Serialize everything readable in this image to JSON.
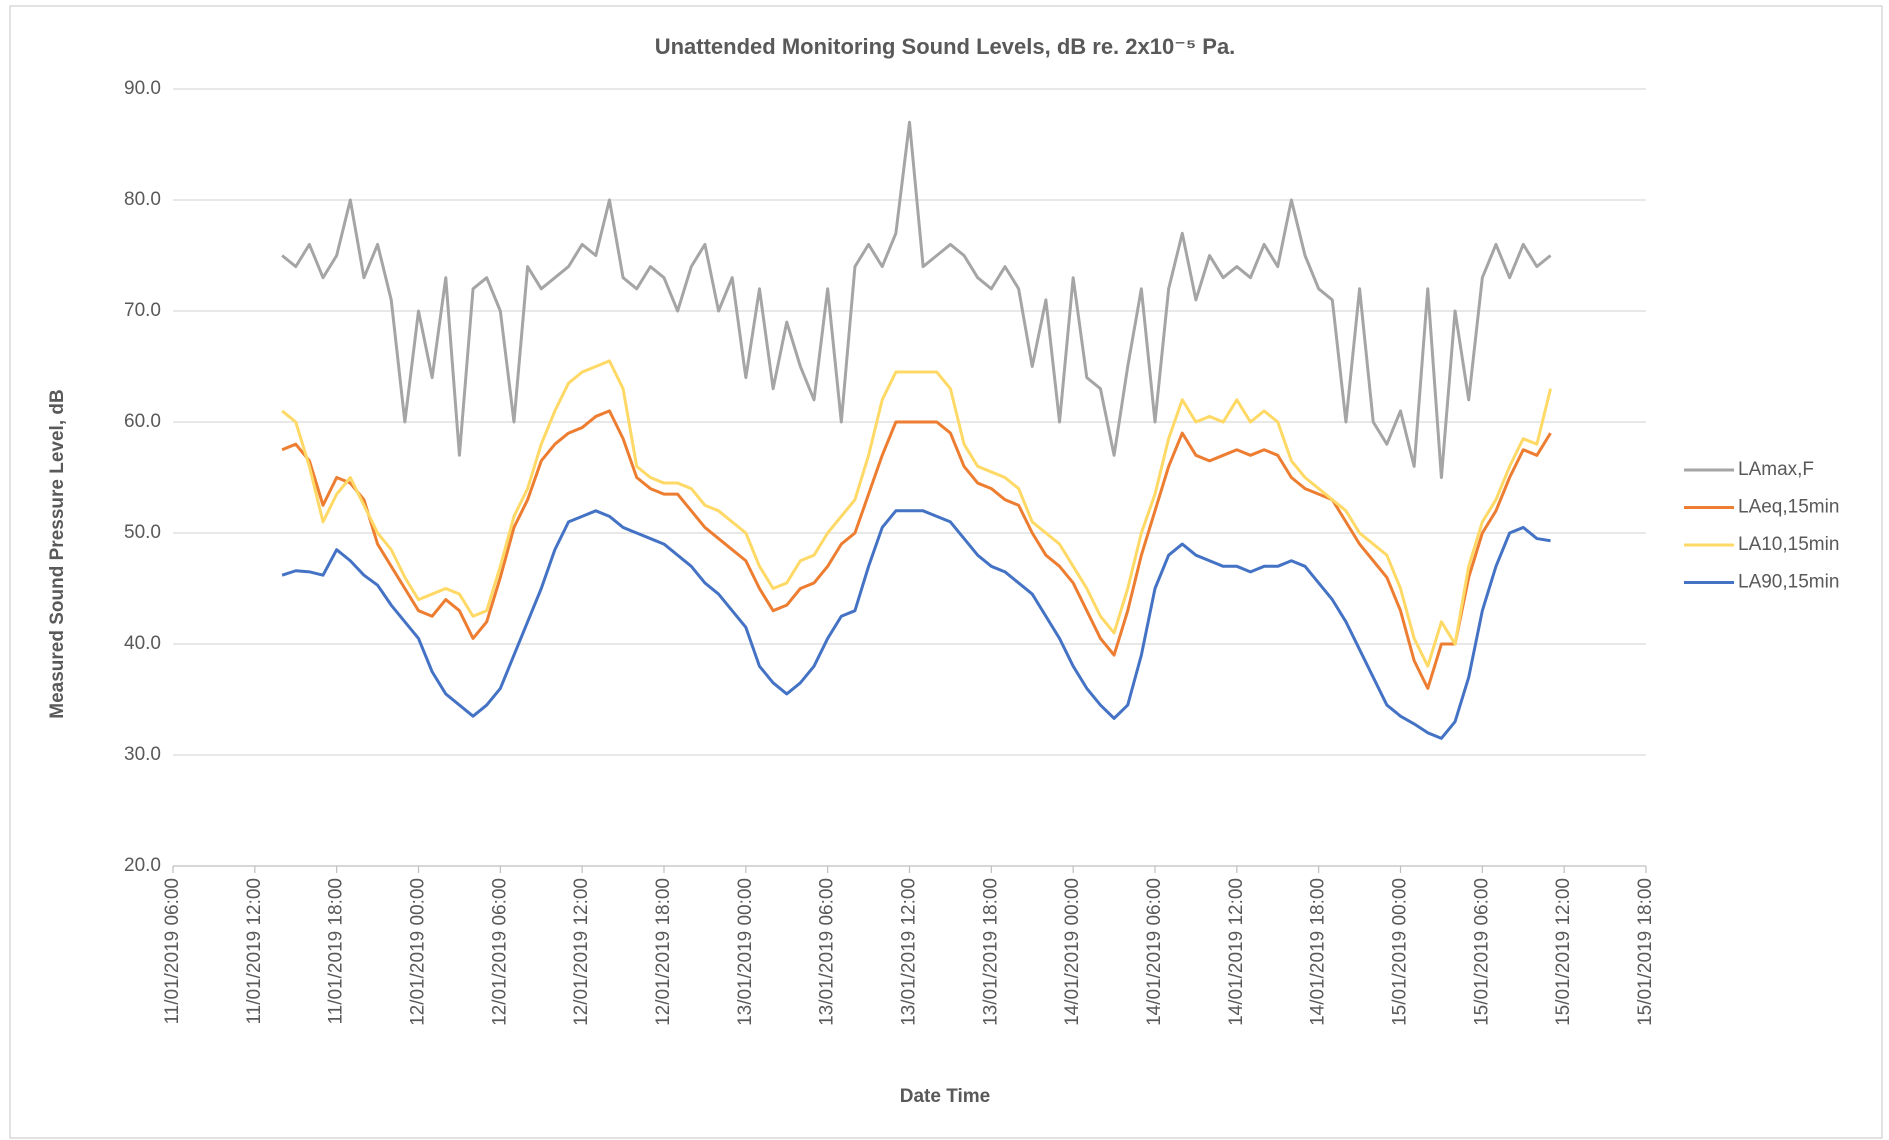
{
  "chart_data": {
    "type": "line",
    "title": "Unattended Monitoring Sound Levels, dB re. 2x10⁻⁵ Pa.",
    "x_label": "Date Time",
    "y_label": "Measured Sound Pressure Level, dB",
    "x": [
      "11/01/2019 14:00",
      "11/01/2019 15:00",
      "11/01/2019 16:00",
      "11/01/2019 17:00",
      "11/01/2019 18:00",
      "11/01/2019 19:00",
      "11/01/2019 20:00",
      "11/01/2019 21:00",
      "11/01/2019 22:00",
      "11/01/2019 23:00",
      "12/01/2019 00:00",
      "12/01/2019 01:00",
      "12/01/2019 02:00",
      "12/01/2019 03:00",
      "12/01/2019 04:00",
      "12/01/2019 05:00",
      "12/01/2019 06:00",
      "12/01/2019 07:00",
      "12/01/2019 08:00",
      "12/01/2019 09:00",
      "12/01/2019 10:00",
      "12/01/2019 11:00",
      "12/01/2019 12:00",
      "12/01/2019 13:00",
      "12/01/2019 14:00",
      "12/01/2019 15:00",
      "12/01/2019 16:00",
      "12/01/2019 17:00",
      "12/01/2019 18:00",
      "12/01/2019 19:00",
      "12/01/2019 20:00",
      "12/01/2019 21:00",
      "12/01/2019 22:00",
      "12/01/2019 23:00",
      "13/01/2019 00:00",
      "13/01/2019 01:00",
      "13/01/2019 02:00",
      "13/01/2019 03:00",
      "13/01/2019 04:00",
      "13/01/2019 05:00",
      "13/01/2019 06:00",
      "13/01/2019 07:00",
      "13/01/2019 08:00",
      "13/01/2019 09:00",
      "13/01/2019 10:00",
      "13/01/2019 11:00",
      "13/01/2019 12:00",
      "13/01/2019 13:00",
      "13/01/2019 14:00",
      "13/01/2019 15:00",
      "13/01/2019 16:00",
      "13/01/2019 17:00",
      "13/01/2019 18:00",
      "13/01/2019 19:00",
      "13/01/2019 20:00",
      "13/01/2019 21:00",
      "13/01/2019 22:00",
      "13/01/2019 23:00",
      "14/01/2019 00:00",
      "14/01/2019 01:00",
      "14/01/2019 02:00",
      "14/01/2019 03:00",
      "14/01/2019 04:00",
      "14/01/2019 05:00",
      "14/01/2019 06:00",
      "14/01/2019 07:00",
      "14/01/2019 08:00",
      "14/01/2019 09:00",
      "14/01/2019 10:00",
      "14/01/2019 11:00",
      "14/01/2019 12:00",
      "14/01/2019 13:00",
      "14/01/2019 14:00",
      "14/01/2019 15:00",
      "14/01/2019 16:00",
      "14/01/2019 17:00",
      "14/01/2019 18:00",
      "14/01/2019 19:00",
      "14/01/2019 20:00",
      "14/01/2019 21:00",
      "14/01/2019 22:00",
      "14/01/2019 23:00",
      "15/01/2019 00:00",
      "15/01/2019 01:00",
      "15/01/2019 02:00",
      "15/01/2019 03:00",
      "15/01/2019 04:00",
      "15/01/2019 05:00",
      "15/01/2019 06:00",
      "15/01/2019 07:00",
      "15/01/2019 08:00",
      "15/01/2019 09:00",
      "15/01/2019 10:00",
      "15/01/2019 11:00"
    ],
    "series": [
      {
        "name": "LAmax,F",
        "color": "#a5a5a5",
        "values": [
          75,
          74,
          76,
          73,
          75,
          80,
          73,
          76,
          71,
          60,
          70,
          64,
          73,
          57,
          72,
          73,
          70,
          60,
          74,
          72,
          73,
          74,
          76,
          75,
          80,
          73,
          72,
          74,
          73,
          70,
          74,
          76,
          70,
          73,
          64,
          72,
          63,
          69,
          65,
          62,
          72,
          60,
          74,
          76,
          74,
          77,
          87,
          74,
          75,
          76,
          75,
          73,
          72,
          74,
          72,
          65,
          71,
          60,
          73,
          64,
          63,
          57,
          65,
          72,
          60,
          72,
          77,
          71,
          75,
          73,
          74,
          73,
          76,
          74,
          80,
          75,
          72,
          71,
          60,
          72,
          60,
          58,
          61,
          56,
          72,
          55,
          70,
          62,
          73,
          76,
          73,
          76,
          74,
          75
        ]
      },
      {
        "name": "LAeq,15min",
        "color": "#ed7d31",
        "values": [
          57.5,
          58,
          56.5,
          52.5,
          55,
          54.5,
          53,
          49,
          47,
          45,
          43,
          42.5,
          44,
          43,
          40.5,
          42,
          46,
          50.5,
          53,
          56.5,
          58,
          59,
          59.5,
          60.5,
          61,
          58.5,
          55,
          54,
          53.5,
          53.5,
          52,
          50.5,
          49.5,
          48.5,
          47.5,
          45,
          43,
          43.5,
          45,
          45.5,
          47,
          49,
          50,
          53.5,
          57,
          60,
          60,
          60,
          60,
          59,
          56,
          54.5,
          54,
          53,
          52.5,
          50,
          48,
          47,
          45.5,
          43,
          40.5,
          39,
          43,
          48,
          52,
          56,
          59,
          57,
          56.5,
          57,
          57.5,
          57,
          57.5,
          57,
          55,
          54,
          53.5,
          53,
          51,
          49,
          47.5,
          46,
          43,
          38.5,
          36,
          40,
          40,
          46,
          50,
          52,
          55,
          57.5,
          57,
          59
        ]
      },
      {
        "name": "LA10,15min",
        "color": "#ffd966",
        "values": [
          61,
          60,
          56,
          51,
          53.5,
          55,
          52.5,
          50,
          48.5,
          46,
          44,
          44.5,
          45,
          44.5,
          42.5,
          43,
          47,
          51.5,
          54,
          58,
          61,
          63.5,
          64.5,
          65,
          65.5,
          63,
          56,
          55,
          54.5,
          54.5,
          54,
          52.5,
          52,
          51,
          50,
          47,
          45,
          45.5,
          47.5,
          48,
          50,
          51.5,
          53,
          57,
          62,
          64.5,
          64.5,
          64.5,
          64.5,
          63,
          58,
          56,
          55.5,
          55,
          54,
          51,
          50,
          49,
          47,
          45,
          42.5,
          41,
          45,
          50,
          53.5,
          58.5,
          62,
          60,
          60.5,
          60,
          62,
          60,
          61,
          60,
          56.5,
          55,
          54,
          53,
          52,
          50,
          49,
          48,
          45,
          40.5,
          38,
          42,
          40,
          47,
          51,
          53,
          56,
          58.5,
          58,
          63
        ]
      },
      {
        "name": "LA90,15min",
        "color": "#4472c4",
        "values": [
          46.2,
          46.6,
          46.5,
          46.2,
          48.5,
          47.5,
          46.2,
          45.3,
          43.5,
          42,
          40.5,
          37.5,
          35.5,
          34.5,
          33.5,
          34.5,
          36,
          39,
          42,
          45,
          48.5,
          51,
          51.5,
          52,
          51.5,
          50.5,
          50,
          49.5,
          49,
          48,
          47,
          45.5,
          44.5,
          43,
          41.5,
          38,
          36.5,
          35.5,
          36.5,
          38,
          40.5,
          42.5,
          43,
          47,
          50.5,
          52,
          52,
          52,
          51.5,
          51,
          49.5,
          48,
          47,
          46.5,
          45.5,
          44.5,
          42.5,
          40.5,
          38,
          36,
          34.5,
          33.3,
          34.5,
          39,
          45,
          48,
          49,
          48,
          47.5,
          47,
          47,
          46.5,
          47,
          47,
          47.5,
          47,
          45.5,
          44,
          42,
          39.5,
          37,
          34.5,
          33.5,
          32.8,
          32,
          31.5,
          33,
          37,
          43,
          47,
          50,
          50.5,
          49.5,
          49.3
        ]
      }
    ],
    "xlim": [
      "11/01/2019 06:00",
      "15/01/2019 18:00"
    ],
    "xticks": [
      "11/01/2019 06:00",
      "11/01/2019 12:00",
      "11/01/2019 18:00",
      "12/01/2019 00:00",
      "12/01/2019 06:00",
      "12/01/2019 12:00",
      "12/01/2019 18:00",
      "13/01/2019 00:00",
      "13/01/2019 06:00",
      "13/01/2019 12:00",
      "13/01/2019 18:00",
      "14/01/2019 00:00",
      "14/01/2019 06:00",
      "14/01/2019 12:00",
      "14/01/2019 18:00",
      "15/01/2019 00:00",
      "15/01/2019 06:00",
      "15/01/2019 12:00",
      "15/01/2019 18:00"
    ],
    "ylim": [
      20,
      90
    ],
    "yticks": [
      {
        "value": 20,
        "label": "20.0"
      },
      {
        "value": 30,
        "label": "30.0"
      },
      {
        "value": 40,
        "label": "40.0"
      },
      {
        "value": 50,
        "label": "50.0"
      },
      {
        "value": 60,
        "label": "60.0"
      },
      {
        "value": 70,
        "label": "70.0"
      },
      {
        "value": 80,
        "label": "80.0"
      },
      {
        "value": 90,
        "label": "90.0"
      }
    ],
    "grid": true,
    "legend": "right"
  }
}
